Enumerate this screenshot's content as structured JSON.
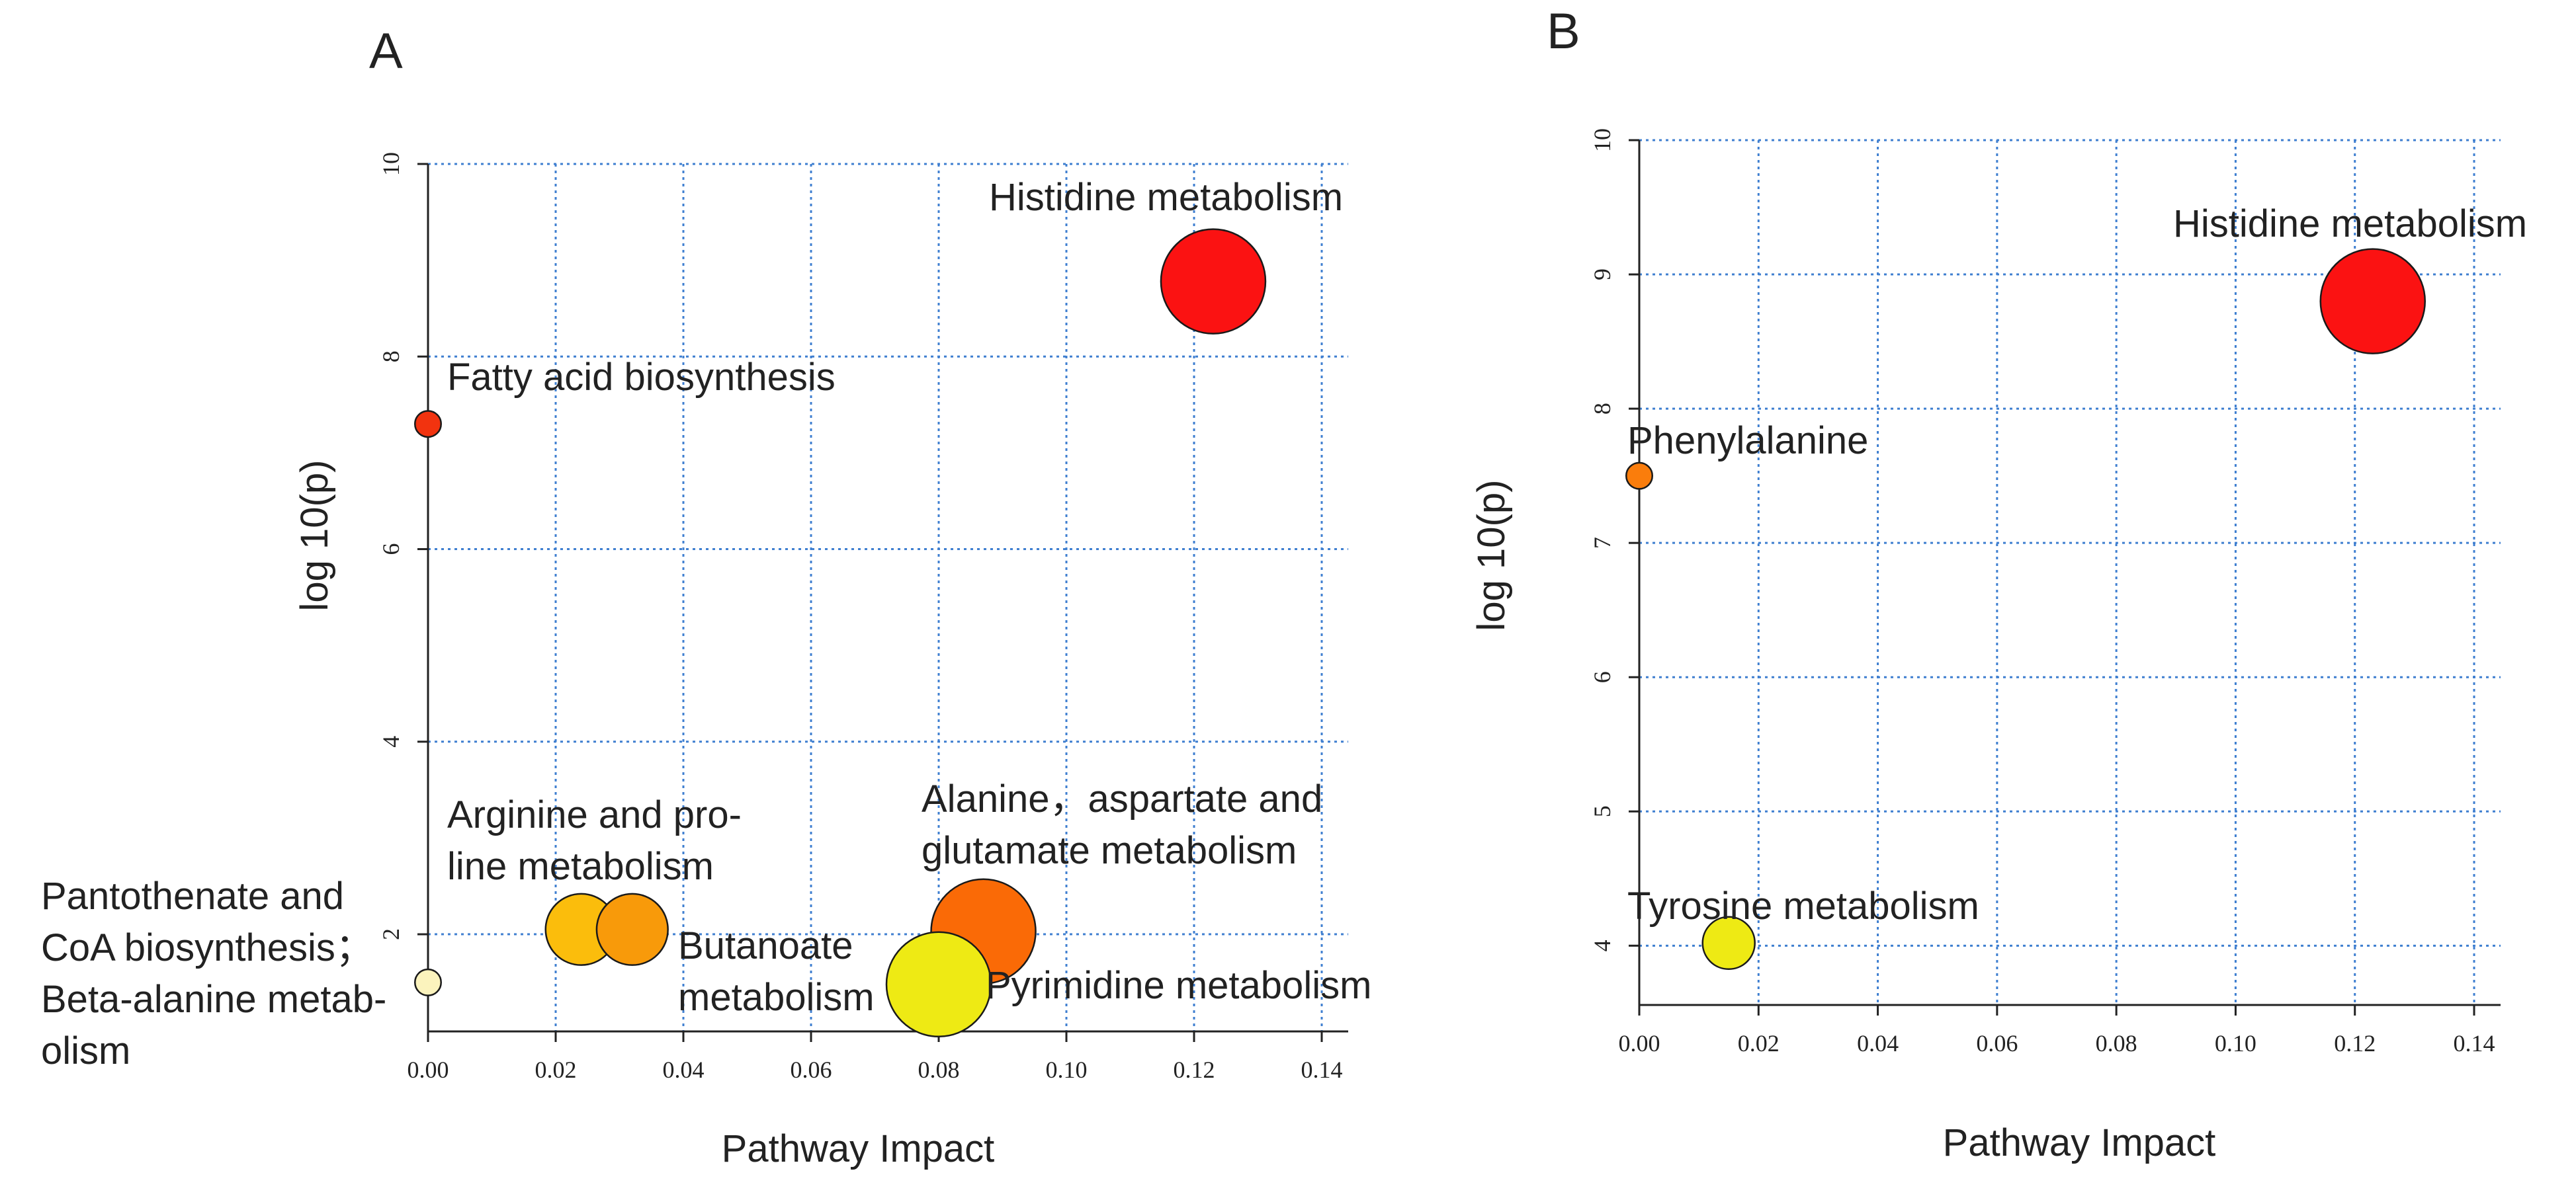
{
  "chart_data": [
    {
      "panel": "A",
      "type": "scatter",
      "xlabel": "Pathway Impact",
      "ylabel": "log 10(p)",
      "xlim": [
        0,
        0.14
      ],
      "ylim": [
        1.3,
        10
      ],
      "x_ticks": [
        "0.00",
        "0.02",
        "0.04",
        "0.06",
        "0.08",
        "0.10",
        "0.12",
        "0.14"
      ],
      "y_ticks": [
        "2",
        "4",
        "6",
        "8",
        "10"
      ],
      "grid": true,
      "points": [
        {
          "name": "Histidine metabolism",
          "label_lines": [
            "Histidine metabolism"
          ],
          "x": 0.123,
          "y": 8.78,
          "size": 2.2,
          "color": "#fb1212"
        },
        {
          "name": "Fatty acid biosynthesis",
          "label_lines": [
            "Fatty acid biosynthesis"
          ],
          "x": 0.0,
          "y": 7.3,
          "size": 0.55,
          "color": "#f2330f"
        },
        {
          "name": "Arginine and proline metabolism",
          "label_lines": [
            "Arginine and pro-",
            "line metabolism"
          ],
          "x": 0.024,
          "y": 2.05,
          "size": 1.5,
          "color": "#fbbd0c"
        },
        {
          "name": "Butanoate metabolism",
          "label_lines": [
            "Butanoate",
            "metabolism"
          ],
          "x": 0.032,
          "y": 2.05,
          "size": 1.5,
          "color": "#f89a0a"
        },
        {
          "name": "Alanine, aspartate and glutamate metabolism",
          "label_lines": [
            "Alanine，aspartate and",
            "glutamate metabolism"
          ],
          "x": 0.087,
          "y": 2.03,
          "size": 2.2,
          "color": "#fa6a06"
        },
        {
          "name": "Pyrimidine metabolism",
          "label_lines": [
            "Pyrimidine metabolism"
          ],
          "x": 0.08,
          "y": 1.48,
          "size": 2.2,
          "color": "#eeea14"
        },
        {
          "name": "Pantothenate and CoA biosynthesis; Beta-alanine metabolism",
          "label_lines": [
            "Pantothenate and",
            "CoA biosynthesis；",
            "Beta-alanine metab-",
            "olism"
          ],
          "x": 0.0,
          "y": 1.5,
          "size": 0.55,
          "color": "#fbf3bd"
        }
      ]
    },
    {
      "panel": "B",
      "type": "scatter",
      "xlabel": "Pathway Impact",
      "ylabel": "log 10(p)",
      "xlim": [
        0,
        0.14
      ],
      "ylim": [
        3.78,
        10
      ],
      "x_ticks": [
        "0.00",
        "0.02",
        "0.04",
        "0.06",
        "0.08",
        "0.10",
        "0.12",
        "0.14"
      ],
      "y_ticks": [
        "4",
        "5",
        "6",
        "7",
        "8",
        "9",
        "10"
      ],
      "grid": true,
      "points": [
        {
          "name": "Histidine metabolism",
          "label_lines": [
            "Histidine metabolism"
          ],
          "x": 0.123,
          "y": 8.8,
          "size": 2.2,
          "color": "#fb1212"
        },
        {
          "name": "Phenylalanine",
          "label_lines": [
            "Phenylalanine"
          ],
          "x": 0.0,
          "y": 7.5,
          "size": 0.55,
          "color": "#fa7d0c"
        },
        {
          "name": "Tyrosine metabolism",
          "label_lines": [
            "Tyrosine metabolism"
          ],
          "x": 0.015,
          "y": 4.02,
          "size": 1.1,
          "color": "#eeea14"
        }
      ]
    }
  ]
}
